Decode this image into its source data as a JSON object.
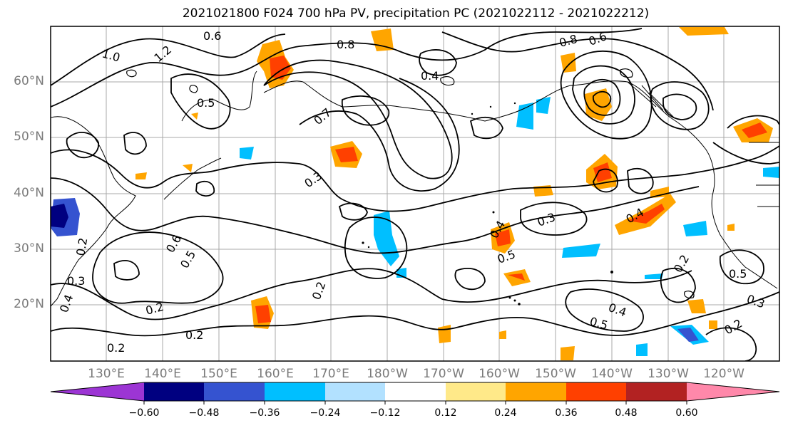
{
  "title": "2021021800 F024 700 hPa PV, precipitation PC (2021022112 - 2021022212)",
  "latitude_labels": [
    "60°N",
    "50°N",
    "40°N",
    "30°N",
    "20°N"
  ],
  "longitude_labels": [
    "130°E",
    "140°E",
    "150°E",
    "160°E",
    "170°E",
    "180°W",
    "170°W",
    "160°W",
    "150°W",
    "140°W",
    "130°W",
    "120°W"
  ],
  "contour_labels": [
    "1.0",
    "1.2",
    "0.6",
    "0.8",
    "0.4",
    "0.5",
    "0.3",
    "0.2",
    "0.7",
    "0.5",
    "0.6",
    "0.3",
    "0.4",
    "0.2",
    "0.2",
    "0.2",
    "0.2",
    "0.4",
    "0.5",
    "0.3",
    "0.8",
    "0.6",
    "0.4",
    "0.2",
    "0.5",
    "0.3",
    "0.4",
    "0.5",
    "0.2"
  ],
  "colorbar": {
    "ticks": [
      "−0.60",
      "−0.48",
      "−0.36",
      "−0.24",
      "−0.12",
      "0.12",
      "0.24",
      "0.36",
      "0.48",
      "0.60"
    ],
    "colors": [
      "#9c35d4",
      "#000080",
      "#3553d0",
      "#00bfff",
      "#b2e1ff",
      "#ffffff",
      "#ffe989",
      "#ffa500",
      "#ff4000",
      "#b22222",
      "#ff88aa"
    ]
  },
  "colors": {
    "land": "#000000",
    "contour": "#000000",
    "grid": "#a8a8a8",
    "axis_label": "#7a7a7a"
  }
}
